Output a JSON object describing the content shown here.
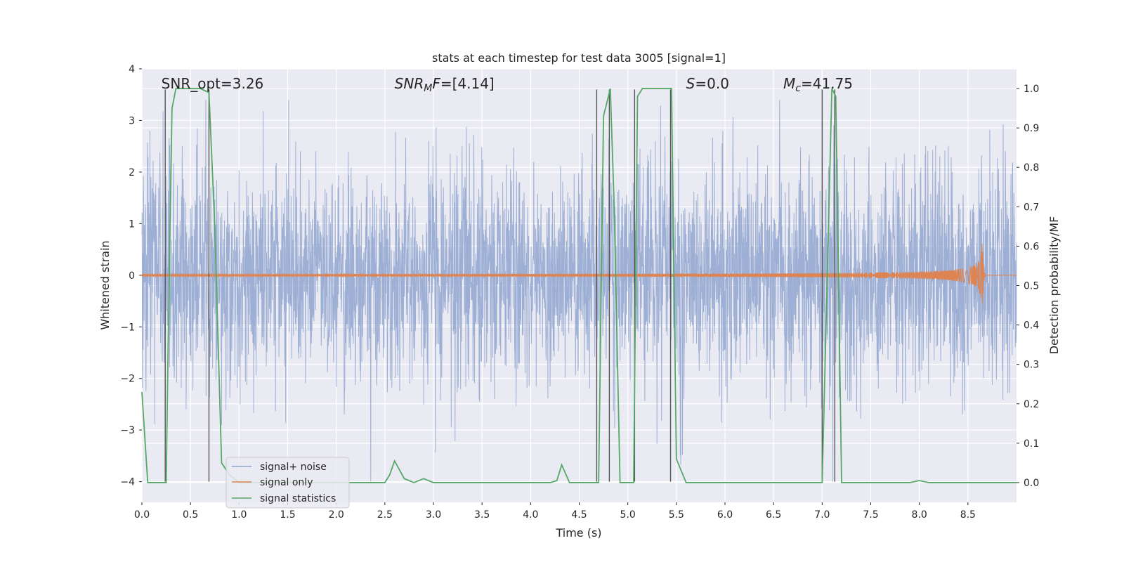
{
  "chart_data": {
    "type": "line",
    "title": "stats at each timestep for test data 3005 [signal=1]",
    "xlabel": "Time (s)",
    "ylabel": "Whitened strain",
    "y2label": "Detection probability/MF",
    "xlim": [
      0,
      9
    ],
    "ylim": [
      -4.4,
      4
    ],
    "y2lim": [
      -0.05,
      1.05
    ],
    "xticks": [
      0.0,
      0.5,
      1.0,
      1.5,
      2.0,
      2.5,
      3.0,
      3.5,
      4.0,
      4.5,
      5.0,
      5.5,
      6.0,
      6.5,
      7.0,
      7.5,
      8.0,
      8.5
    ],
    "xtick_labels": [
      "0.0",
      "0.5",
      "1.0",
      "1.5",
      "2.0",
      "2.5",
      "3.0",
      "3.5",
      "4.0",
      "4.5",
      "5.0",
      "5.5",
      "6.0",
      "6.5",
      "7.0",
      "7.5",
      "8.0",
      "8.5"
    ],
    "yticks": [
      -4,
      -3,
      -2,
      -1,
      0,
      1,
      2,
      3,
      4
    ],
    "ytick_labels": [
      "−4",
      "−3",
      "−2",
      "−1",
      "0",
      "1",
      "2",
      "3",
      "4"
    ],
    "y2ticks": [
      0.0,
      0.1,
      0.2,
      0.3,
      0.4,
      0.5,
      0.6,
      0.7,
      0.8,
      0.9,
      1.0
    ],
    "y2tick_labels": [
      "0.0",
      "0.1",
      "0.2",
      "0.3",
      "0.4",
      "0.5",
      "0.6",
      "0.7",
      "0.8",
      "0.9",
      "1.0"
    ],
    "grid": true,
    "legend_position": "lower-left",
    "annotations": [
      {
        "id": "snr-opt",
        "text": "SNR_opt=3.26",
        "x": 0.2,
        "y": 3.62
      },
      {
        "id": "snr-mf",
        "text": "SNR_MF=[4.14]",
        "x": 2.6,
        "y": 3.62,
        "parts": [
          {
            "t": "SNR",
            "style": "italic"
          },
          {
            "t": "M",
            "style": "italic",
            "sub": true
          },
          {
            "t": "F",
            "style": "italic"
          },
          {
            "t": "=[4.14]"
          }
        ]
      },
      {
        "id": "s-stat",
        "text": "S=0.0",
        "x": 5.6,
        "y": 3.62,
        "parts": [
          {
            "t": "S",
            "style": "italic"
          },
          {
            "t": "=0.0"
          }
        ]
      },
      {
        "id": "mc",
        "text": "Mc=41.75",
        "x": 6.6,
        "y": 3.62,
        "parts": [
          {
            "t": "M",
            "style": "italic"
          },
          {
            "t": "c",
            "style": "italic",
            "sub": true
          },
          {
            "t": "=41.75"
          }
        ]
      }
    ],
    "series": [
      {
        "name": "signal+ noise",
        "color": "#8fa5cf",
        "axis": "left",
        "style": "noise",
        "band_std": 1.05,
        "peak_range": [
          2.0,
          3.4
        ]
      },
      {
        "name": "signal only",
        "color": "#dd8452",
        "axis": "left",
        "style": "chirp",
        "merger_time": 8.65,
        "peak_amplitude": 0.72
      },
      {
        "name": "signal statistics",
        "color": "#55a868",
        "axis": "right",
        "x": [
          0.0,
          0.06,
          0.25,
          0.27,
          0.31,
          0.35,
          0.6,
          0.69,
          0.75,
          0.82,
          0.9,
          1.0,
          2.3,
          2.5,
          2.55,
          2.6,
          2.7,
          2.8,
          2.9,
          3.0,
          4.2,
          4.27,
          4.32,
          4.4,
          4.6,
          4.7,
          4.75,
          4.82,
          4.86,
          4.92,
          4.97,
          5.06,
          5.1,
          5.15,
          5.4,
          5.45,
          5.5,
          5.6,
          6.95,
          7.0,
          7.05,
          7.1,
          7.14,
          7.2,
          7.25,
          7.9,
          8.0,
          8.1,
          9.0
        ],
        "values": [
          0.23,
          0.0,
          0.0,
          0.35,
          0.95,
          1.0,
          1.0,
          0.99,
          0.65,
          0.05,
          0.02,
          0.0,
          0.0,
          0.0,
          0.02,
          0.055,
          0.01,
          0.0,
          0.01,
          0.0,
          0.0,
          0.005,
          0.045,
          0.0,
          0.0,
          0.0,
          0.93,
          1.0,
          0.7,
          0.0,
          0.0,
          0.0,
          0.98,
          1.0,
          1.0,
          1.0,
          0.06,
          0.0,
          0.0,
          0.0,
          0.5,
          1.0,
          0.98,
          0.0,
          0.0,
          0.0,
          0.005,
          0.0,
          0.0
        ]
      }
    ],
    "vlines": [
      0.24,
      0.69,
      4.68,
      4.81,
      5.07,
      5.44,
      7.0,
      7.13
    ]
  },
  "legend": {
    "items": [
      {
        "label": "signal+ noise",
        "color": "#8fa5cf"
      },
      {
        "label": "signal only",
        "color": "#dd8452"
      },
      {
        "label": "signal statistics",
        "color": "#55a868"
      }
    ]
  },
  "colors": {
    "plot_background": "#eaeaf2",
    "grid": "#ffffff",
    "vline": "#555555",
    "text": "#262626"
  }
}
